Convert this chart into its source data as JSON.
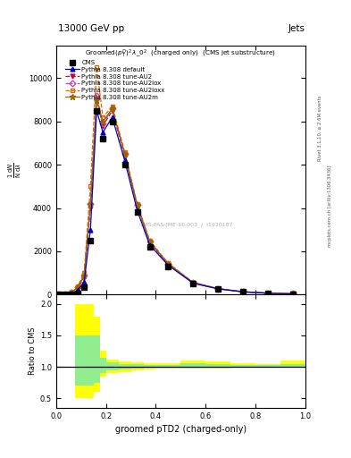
{
  "title_top": "13000 GeV pp",
  "title_right": "Jets",
  "plot_title": "Groomed$(p_T^D)^2\\,\\lambda\\_0^2$  (charged only)  (CMS jet substructure)",
  "xlabel": "groomed pTD2 (charged-only)",
  "ylabel_main": "$\\frac{1}{\\mathrm{N}}\\frac{\\mathrm{d}N}{\\mathrm{d}\\lambda}$",
  "ylabel_ratio": "Ratio to CMS",
  "watermark": "CMS-PAS-JME-16-003  /  I1920187",
  "right_label": "mcplots.cern.ch [arXiv:1306.3436]",
  "rivet_label": "Rivet 3.1.10, ≥ 2.6M events",
  "xbins": [
    0.0,
    0.025,
    0.05,
    0.075,
    0.1,
    0.125,
    0.15,
    0.175,
    0.2,
    0.25,
    0.3,
    0.35,
    0.4,
    0.5,
    0.6,
    0.7,
    0.8,
    0.9,
    1.0
  ],
  "cms_data": [
    0,
    0,
    0,
    50,
    350,
    2500,
    8500,
    7200,
    8000,
    6000,
    3800,
    2200,
    1300,
    500,
    250,
    120,
    60,
    30
  ],
  "pythia_default": [
    0,
    0,
    50,
    200,
    600,
    3000,
    8500,
    7500,
    8200,
    6200,
    3900,
    2300,
    1350,
    520,
    260,
    125,
    62,
    32
  ],
  "pythia_AU2": [
    0,
    0,
    80,
    300,
    800,
    4000,
    9000,
    7800,
    8500,
    6400,
    4100,
    2400,
    1400,
    540,
    270,
    128,
    64,
    33
  ],
  "pythia_AU2lox": [
    0,
    0,
    90,
    350,
    900,
    4200,
    9200,
    7900,
    8600,
    6500,
    4150,
    2450,
    1430,
    550,
    275,
    130,
    65,
    33
  ],
  "pythia_AU2loxx": [
    0,
    0,
    120,
    400,
    1000,
    5000,
    10500,
    8200,
    8700,
    6600,
    4200,
    2500,
    1450,
    560,
    280,
    132,
    66,
    34
  ],
  "pythia_AU2m": [
    0,
    0,
    90,
    350,
    900,
    4200,
    9000,
    8000,
    8600,
    6500,
    4150,
    2450,
    1420,
    545,
    270,
    128,
    64,
    33
  ],
  "ratio_yellow_lo": [
    1.0,
    1.0,
    1.0,
    0.5,
    0.5,
    0.5,
    0.6,
    0.85,
    0.9,
    0.92,
    0.94,
    0.96,
    0.97,
    0.97,
    0.97,
    0.98,
    0.98,
    1.0
  ],
  "ratio_yellow_hi": [
    1.0,
    1.0,
    1.0,
    2.0,
    2.0,
    2.0,
    1.8,
    1.25,
    1.12,
    1.09,
    1.07,
    1.06,
    1.06,
    1.1,
    1.08,
    1.06,
    1.05,
    1.1
  ],
  "ratio_green_lo": [
    1.0,
    1.0,
    1.0,
    0.7,
    0.7,
    0.7,
    0.75,
    0.9,
    0.94,
    0.96,
    0.97,
    0.98,
    0.98,
    0.98,
    0.98,
    0.99,
    0.99,
    1.0
  ],
  "ratio_green_hi": [
    1.0,
    1.0,
    1.0,
    1.5,
    1.5,
    1.5,
    1.5,
    1.15,
    1.07,
    1.05,
    1.04,
    1.03,
    1.03,
    1.06,
    1.04,
    1.03,
    1.03,
    1.05
  ],
  "color_default": "#0000cc",
  "color_AU2": "#cc0033",
  "color_AU2lox": "#cc44aa",
  "color_AU2loxx": "#dd6600",
  "color_AU2m": "#996600",
  "ylim_main": [
    0,
    11500
  ],
  "ylim_ratio": [
    0.35,
    2.15
  ],
  "yticks_main": [
    0,
    2000,
    4000,
    6000,
    8000,
    10000
  ],
  "yticks_ratio": [
    0.5,
    1.0,
    1.5,
    2.0
  ]
}
